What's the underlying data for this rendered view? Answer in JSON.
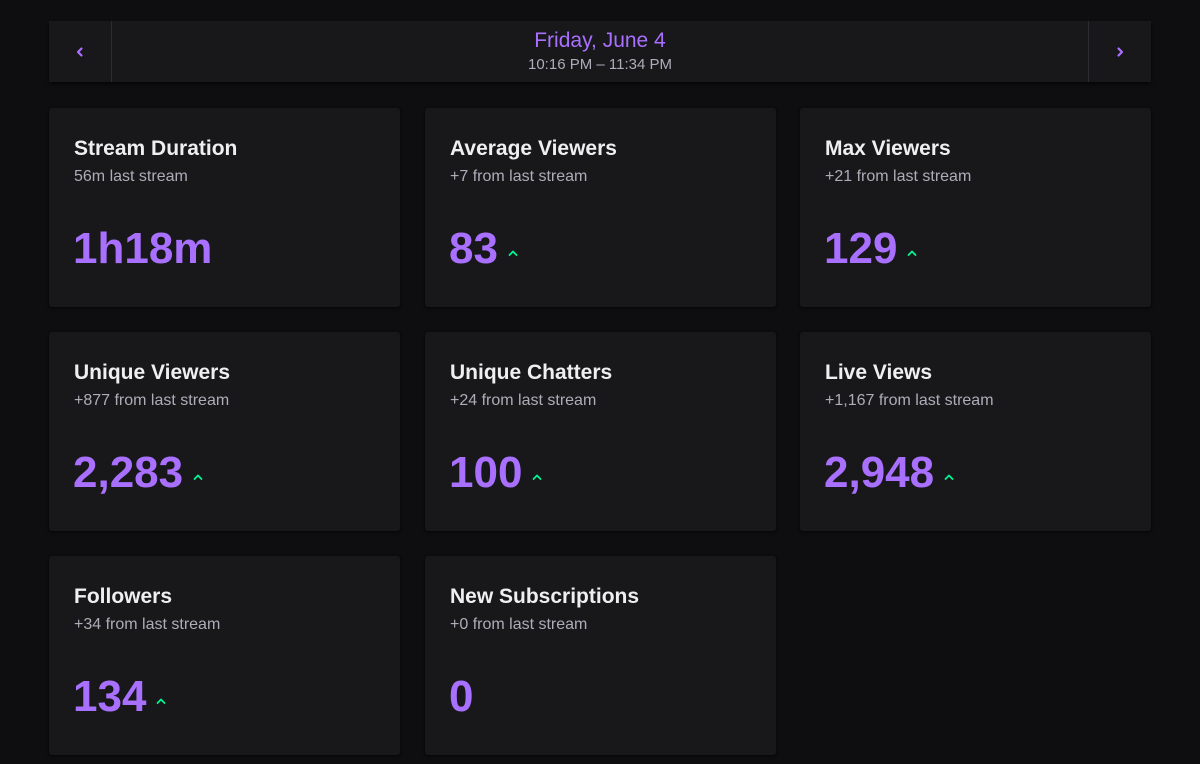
{
  "header": {
    "date": "Friday, June 4",
    "time_range": "10:16 PM – 11:34 PM",
    "prev_icon": "chevron-left-icon",
    "next_icon": "chevron-right-icon"
  },
  "colors": {
    "accent": "#a970ff",
    "trend_up": "#00f593",
    "card_bg": "#18181b",
    "page_bg": "#0e0e10"
  },
  "stats": [
    {
      "title": "Stream Duration",
      "subtitle": "56m last stream",
      "value": "1h18m",
      "trend": "none"
    },
    {
      "title": "Average Viewers",
      "subtitle": "+7 from last stream",
      "value": "83",
      "trend": "up"
    },
    {
      "title": "Max Viewers",
      "subtitle": "+21 from last stream",
      "value": "129",
      "trend": "up"
    },
    {
      "title": "Unique Viewers",
      "subtitle": "+877 from last stream",
      "value": "2,283",
      "trend": "up"
    },
    {
      "title": "Unique Chatters",
      "subtitle": "+24 from last stream",
      "value": "100",
      "trend": "up"
    },
    {
      "title": "Live Views",
      "subtitle": "+1,167 from last stream",
      "value": "2,948",
      "trend": "up"
    },
    {
      "title": "Followers",
      "subtitle": "+34 from last stream",
      "value": "134",
      "trend": "up"
    },
    {
      "title": "New Subscriptions",
      "subtitle": "+0 from last stream",
      "value": "0",
      "trend": "none"
    }
  ]
}
